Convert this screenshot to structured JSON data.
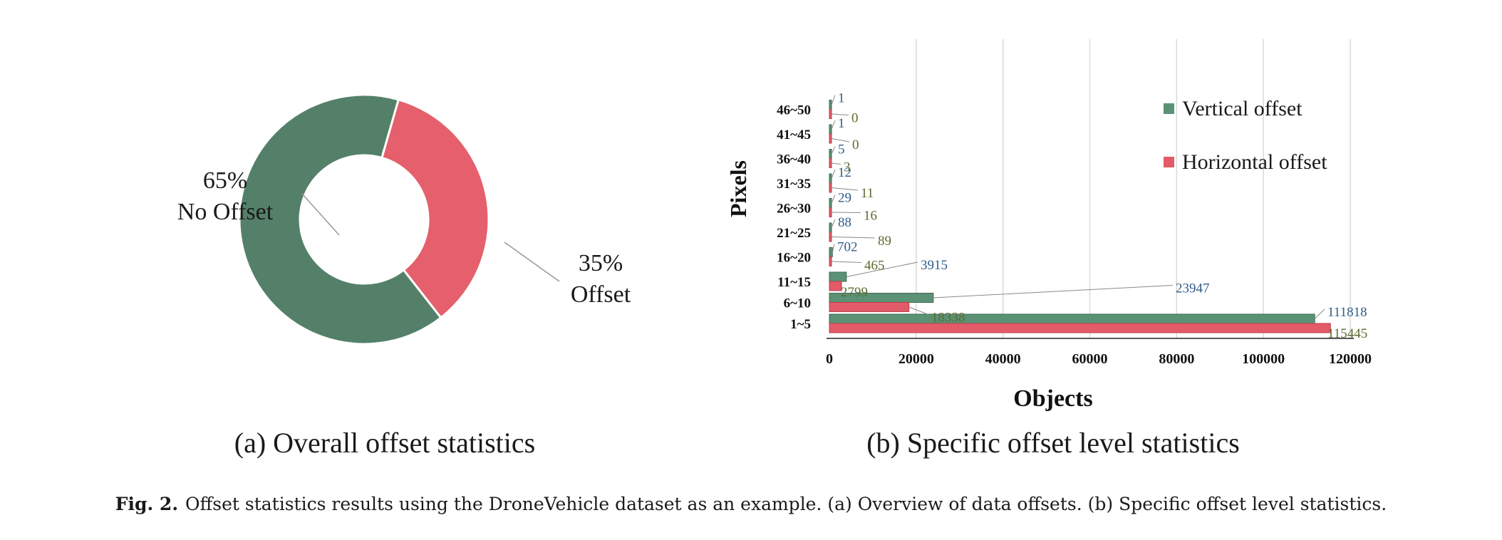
{
  "chart_data": [
    {
      "type": "pie",
      "variant": "donut",
      "slices": [
        {
          "label": "No Offset",
          "percent_label": "65%",
          "value": 65,
          "color": "#548069"
        },
        {
          "label": "Offset",
          "percent_label": "35%",
          "value": 35,
          "color": "#e5606c"
        }
      ],
      "subcaption": "(a) Overall offset statistics"
    },
    {
      "type": "bar",
      "orientation": "horizontal",
      "categories": [
        "1~5",
        "6~10",
        "11~15",
        "16~20",
        "21~25",
        "26~30",
        "31~35",
        "36~40",
        "41~45",
        "46~50"
      ],
      "series": [
        {
          "name": "Vertical offset",
          "color": "#5b9275",
          "label_color": "#2e5d8a",
          "values": [
            111818,
            23947,
            3915,
            702,
            88,
            29,
            12,
            5,
            1,
            1
          ]
        },
        {
          "name": "Horizontal offset",
          "color": "#e35a68",
          "label_color": "#5c6b2e",
          "values": [
            115445,
            18338,
            2799,
            465,
            89,
            16,
            11,
            3,
            0,
            0
          ]
        }
      ],
      "xlabel": "Objects",
      "ylabel": "Pixels",
      "xlim": [
        0,
        120000
      ],
      "xticks": [
        0,
        20000,
        40000,
        60000,
        80000,
        100000,
        120000
      ],
      "grid": "vertical",
      "legend_position": "top-right",
      "subcaption": "(b) Specific offset level statistics"
    }
  ],
  "caption": {
    "label": "Fig. 2.",
    "text": "Offset statistics results using the DroneVehicle dataset as an example. (a) Overview of data offsets. (b) Specific offset level statistics."
  }
}
